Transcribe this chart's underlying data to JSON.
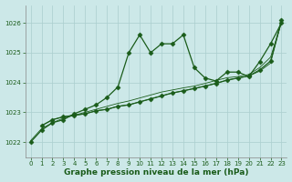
{
  "xlabel": "Graphe pression niveau de la mer (hPa)",
  "bg_color": "#cce8e8",
  "grid_color": "#b0d4d4",
  "line_color": "#1a5c1a",
  "text_color": "#1a5c1a",
  "xlim": [
    -0.5,
    23.5
  ],
  "ylim": [
    1021.5,
    1026.6
  ],
  "yticks": [
    1022,
    1023,
    1024,
    1025,
    1026
  ],
  "xticks": [
    0,
    1,
    2,
    3,
    4,
    5,
    6,
    7,
    8,
    9,
    10,
    11,
    12,
    13,
    14,
    15,
    16,
    17,
    18,
    19,
    20,
    21,
    22,
    23
  ],
  "series1_x": [
    0,
    1,
    2,
    3,
    4,
    5,
    6,
    7,
    8,
    9,
    10,
    11,
    12,
    13,
    14,
    15,
    16,
    17,
    18,
    19,
    20,
    21,
    22,
    23
  ],
  "series1_y": [
    1022.0,
    1022.4,
    1022.65,
    1022.75,
    1022.95,
    1023.1,
    1023.25,
    1023.5,
    1023.85,
    1025.0,
    1025.6,
    1025.0,
    1025.3,
    1025.3,
    1025.6,
    1024.5,
    1024.15,
    1024.05,
    1024.35,
    1024.35,
    1024.2,
    1024.7,
    1025.3,
    1026.0
  ],
  "series2_x": [
    1,
    2,
    3,
    4,
    5,
    6,
    7,
    8,
    9,
    10,
    11,
    12,
    13,
    14,
    15,
    16,
    17,
    18,
    19,
    20,
    21,
    22,
    23
  ],
  "series2_y": [
    1022.55,
    1022.75,
    1022.85,
    1022.9,
    1022.95,
    1023.05,
    1023.1,
    1023.2,
    1023.25,
    1023.35,
    1023.45,
    1023.55,
    1023.65,
    1023.72,
    1023.8,
    1023.88,
    1023.97,
    1024.08,
    1024.15,
    1024.22,
    1024.42,
    1024.72,
    1026.1
  ],
  "series3_x": [
    1,
    2,
    3,
    4,
    5,
    6,
    7,
    8,
    9,
    10,
    11,
    12,
    13,
    14,
    15,
    16,
    17,
    18,
    19,
    20,
    21,
    22,
    23
  ],
  "series3_y": [
    1022.55,
    1022.75,
    1022.85,
    1022.9,
    1022.95,
    1023.05,
    1023.1,
    1023.2,
    1023.25,
    1023.35,
    1023.45,
    1023.55,
    1023.65,
    1023.72,
    1023.8,
    1023.88,
    1023.97,
    1024.08,
    1024.15,
    1024.22,
    1024.38,
    1024.65,
    1026.05
  ],
  "series4_x": [
    0,
    1,
    2,
    3,
    4,
    5,
    6,
    7,
    8,
    9,
    10,
    11,
    12,
    13,
    14,
    15,
    16,
    17,
    18,
    19,
    20,
    21,
    22,
    23
  ],
  "series4_y": [
    1022.05,
    1022.45,
    1022.65,
    1022.8,
    1022.9,
    1023.0,
    1023.1,
    1023.2,
    1023.3,
    1023.38,
    1023.48,
    1023.58,
    1023.68,
    1023.75,
    1023.82,
    1023.88,
    1023.97,
    1024.07,
    1024.16,
    1024.2,
    1024.27,
    1024.5,
    1024.85,
    1026.0
  ]
}
